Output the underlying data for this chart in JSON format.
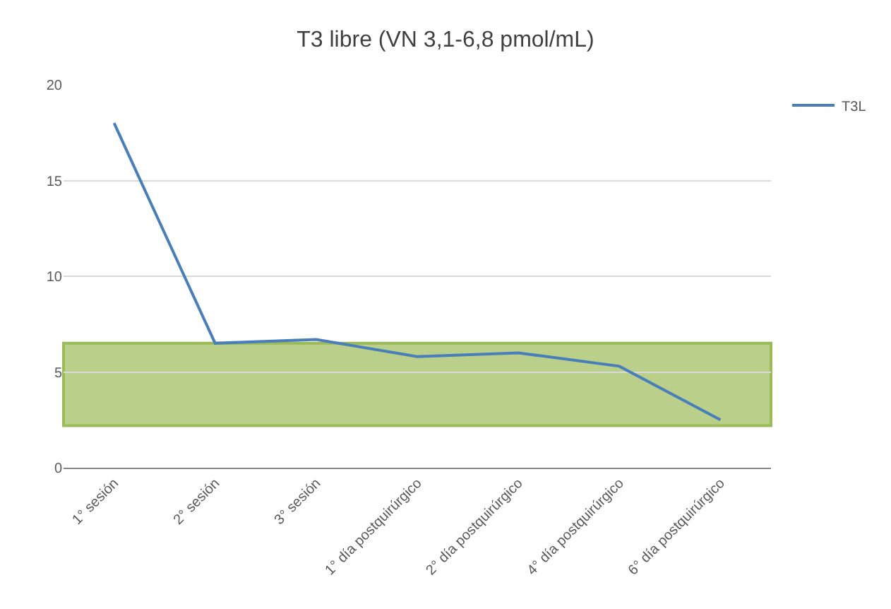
{
  "chart_data": {
    "type": "line",
    "title": "T3 libre (VN 3,1-6,8 pmol/mL)",
    "categories": [
      "1° sesión",
      "2° sesión",
      "3° sesión",
      "1° día postquirúrgico",
      "2° día postquirúrgico",
      "4° día postquirúrgico",
      "6° día postquirúrgico"
    ],
    "series": [
      {
        "name": "T3L",
        "color": "#4a7ebb",
        "values": [
          18,
          6.5,
          6.7,
          5.8,
          6.0,
          5.3,
          2.5
        ]
      }
    ],
    "ylim": [
      0,
      20
    ],
    "yticks": [
      0,
      5,
      10,
      15,
      20
    ],
    "grid": "y",
    "legend": "top right",
    "marker": "none",
    "line_style": "solid",
    "bands": [
      {
        "axis": "y",
        "from": 2.2,
        "to": 6.5,
        "color": "#9bbb59"
      }
    ]
  }
}
